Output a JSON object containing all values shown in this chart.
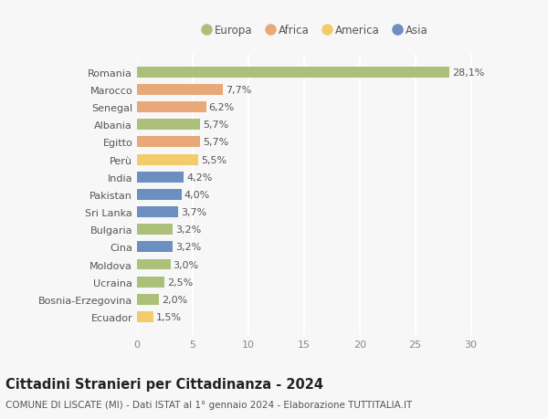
{
  "countries": [
    "Romania",
    "Marocco",
    "Senegal",
    "Albania",
    "Egitto",
    "Perù",
    "India",
    "Pakistan",
    "Sri Lanka",
    "Bulgaria",
    "Cina",
    "Moldova",
    "Ucraina",
    "Bosnia-Erzegovina",
    "Ecuador"
  ],
  "values": [
    28.1,
    7.7,
    6.2,
    5.7,
    5.7,
    5.5,
    4.2,
    4.0,
    3.7,
    3.2,
    3.2,
    3.0,
    2.5,
    2.0,
    1.5
  ],
  "labels": [
    "28,1%",
    "7,7%",
    "6,2%",
    "5,7%",
    "5,7%",
    "5,5%",
    "4,2%",
    "4,0%",
    "3,7%",
    "3,2%",
    "3,2%",
    "3,0%",
    "2,5%",
    "2,0%",
    "1,5%"
  ],
  "continents": [
    "Europa",
    "Africa",
    "Africa",
    "Europa",
    "Africa",
    "America",
    "Asia",
    "Asia",
    "Asia",
    "Europa",
    "Asia",
    "Europa",
    "Europa",
    "Europa",
    "America"
  ],
  "colors": {
    "Europa": "#adc07a",
    "Africa": "#e8a878",
    "America": "#f2cc6a",
    "Asia": "#6b8fbe"
  },
  "legend_order": [
    "Europa",
    "Africa",
    "America",
    "Asia"
  ],
  "title": "Cittadini Stranieri per Cittadinanza - 2024",
  "subtitle": "COMUNE DI LISCATE (MI) - Dati ISTAT al 1° gennaio 2024 - Elaborazione TUTTITALIA.IT",
  "xlim": [
    0,
    32
  ],
  "xticks": [
    0,
    5,
    10,
    15,
    20,
    25,
    30
  ],
  "background_color": "#f7f7f7",
  "grid_color": "#ffffff",
  "bar_height": 0.62,
  "title_fontsize": 10.5,
  "subtitle_fontsize": 7.5,
  "tick_fontsize": 8,
  "label_fontsize": 8,
  "legend_fontsize": 8.5
}
